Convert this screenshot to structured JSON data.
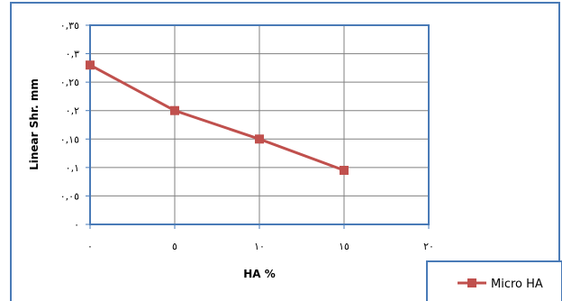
{
  "chart_data": {
    "type": "line",
    "title": "",
    "xlabel": "HA %",
    "ylabel": "Linear Shr. mm",
    "x": [
      0,
      5,
      10,
      15
    ],
    "x_ticks": [
      "٠",
      "٥",
      "١٠",
      "١٥",
      "٢٠"
    ],
    "xlim": [
      0,
      20
    ],
    "y_ticks": [
      "٠",
      "٠,٠٥",
      "٠,١",
      "٠,١٥",
      "٠,٢",
      "٠,٢٥",
      "٠,٣",
      "٠,٣٥"
    ],
    "ylim": [
      0,
      0.35
    ],
    "series": [
      {
        "name": "Micro HA",
        "values": [
          0.28,
          0.2,
          0.15,
          0.095
        ]
      }
    ],
    "grid": true,
    "legend_position": "bottom-right"
  },
  "colors": {
    "frame": "#4a7bb7",
    "series": "#c0504d",
    "grid": "#808080",
    "plot_border": "#4a7bb7"
  }
}
